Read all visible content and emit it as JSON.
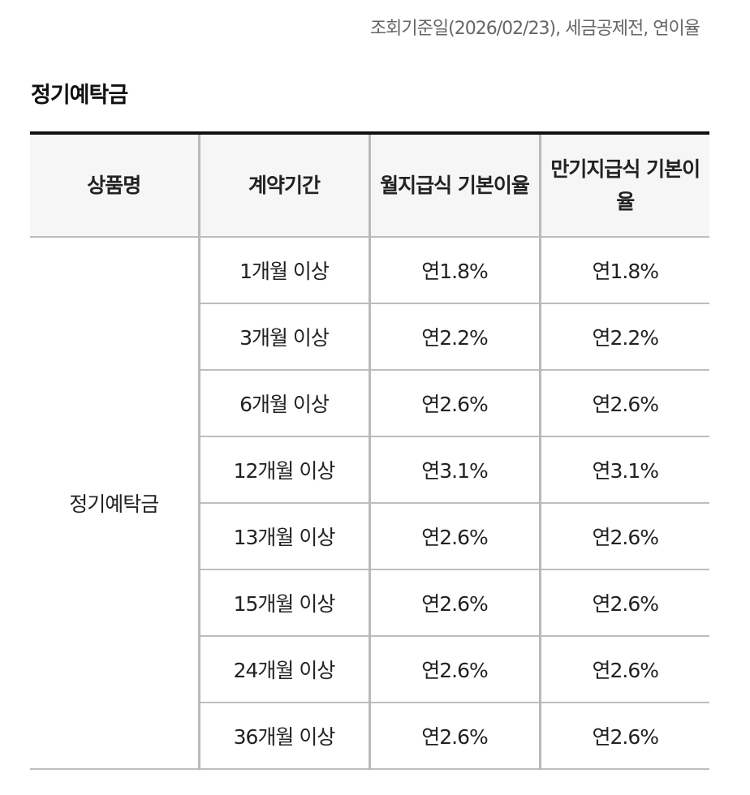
{
  "notice": "조회기준일(2026/02/23), 세금공제전, 연이율",
  "section_title": "정기예탁금",
  "table": {
    "headers": [
      "상품명",
      "계약기간",
      "월지급식 기본이율",
      "만기지급식 기본이율"
    ],
    "product_name": "정기예탁금",
    "rows": [
      {
        "period": "1개월 이상",
        "monthly": "연1.8%",
        "maturity": "연1.8%"
      },
      {
        "period": "3개월 이상",
        "monthly": "연2.2%",
        "maturity": "연2.2%"
      },
      {
        "period": "6개월 이상",
        "monthly": "연2.6%",
        "maturity": "연2.6%"
      },
      {
        "period": "12개월 이상",
        "monthly": "연3.1%",
        "maturity": "연3.1%"
      },
      {
        "period": "13개월 이상",
        "monthly": "연2.6%",
        "maturity": "연2.6%"
      },
      {
        "period": "15개월 이상",
        "monthly": "연2.6%",
        "maturity": "연2.6%"
      },
      {
        "period": "24개월 이상",
        "monthly": "연2.6%",
        "maturity": "연2.6%"
      },
      {
        "period": "36개월 이상",
        "monthly": "연2.6%",
        "maturity": "연2.6%"
      }
    ]
  }
}
